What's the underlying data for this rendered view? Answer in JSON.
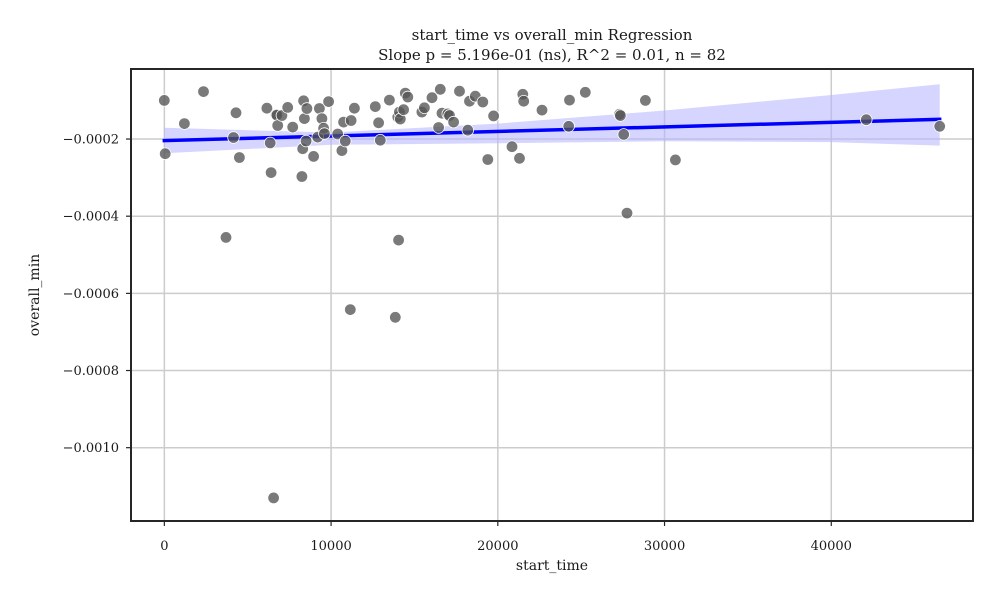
{
  "chart_data": {
    "type": "scatter",
    "title_line1": "start_time vs overall_min Regression",
    "title_line2": "Slope p = 5.196e-01 (ns), R^2 = 0.01, n = 82",
    "xlabel": "start_time",
    "ylabel": "overall_min",
    "xlim": [
      -2000,
      48500
    ],
    "ylim": [
      -0.00119,
      -1.85e-05
    ],
    "x_ticks": [
      0,
      10000,
      20000,
      30000,
      40000
    ],
    "x_tick_labels": [
      "0",
      "10000",
      "20000",
      "30000",
      "40000"
    ],
    "y_ticks": [
      -0.0002,
      -0.0004,
      -0.0006,
      -0.0008,
      -0.001
    ],
    "y_tick_labels": [
      "−0.0002",
      "−0.0004",
      "−0.0006",
      "−0.0008",
      "−0.0010"
    ],
    "grid": true,
    "point_color": "#555555",
    "line_color": "#0000ff",
    "band_color": "#b3b3ff",
    "regression_line": {
      "x": [
        0,
        46500
      ],
      "y": [
        -0.000204,
        -0.000149
      ]
    },
    "confidence_band": {
      "x": [
        0,
        10000,
        20000,
        30000,
        40000,
        46500
      ],
      "upper": [
        -0.000171,
        -0.000183,
        -0.00016,
        -0.000126,
        -8.6e-05,
        -5.8e-05
      ],
      "lower": [
        -0.000237,
        -0.000215,
        -0.000211,
        -0.000206,
        -0.000208,
        -0.000217
      ]
    },
    "points": {
      "x": [
        0,
        50,
        1200,
        2350,
        3700,
        4150,
        4300,
        4500,
        6150,
        6350,
        6400,
        6700,
        6750,
        6800,
        7050,
        7400,
        7700,
        8250,
        8300,
        8350,
        8400,
        8500,
        8550,
        8950,
        9200,
        9300,
        9450,
        9550,
        9600,
        9850,
        10400,
        10650,
        10750,
        10850,
        11150,
        11200,
        11400,
        12650,
        12850,
        12950,
        13500,
        13850,
        14000,
        14050,
        14100,
        14150,
        14350,
        14450,
        14600,
        15450,
        15600,
        16050,
        16450,
        16550,
        16650,
        17000,
        17100,
        17350,
        17700,
        18200,
        18300,
        18650,
        19100,
        19400,
        19750,
        20850,
        21300,
        21500,
        21550,
        22650,
        24250,
        24300,
        25250,
        27300,
        27350,
        27550,
        27750,
        28850,
        30650,
        42100,
        46500,
        6550
      ],
      "y": [
        -0.0001,
        -0.000238,
        -0.00016,
        -7.7e-05,
        -0.000455,
        -0.000196,
        -0.000132,
        -0.000248,
        -0.00012,
        -0.00021,
        -0.000287,
        -0.000137,
        -0.000138,
        -0.000165,
        -0.000139,
        -0.000118,
        -0.000169,
        -0.000297,
        -0.000225,
        -0.000101,
        -0.000147,
        -0.000205,
        -0.000121,
        -0.000245,
        -0.000195,
        -0.000121,
        -0.000147,
        -0.000172,
        -0.000186,
        -0.000103,
        -0.000187,
        -0.00023,
        -0.000156,
        -0.000205,
        -0.000642,
        -0.000152,
        -0.00012,
        -0.000116,
        -0.000158,
        -0.000203,
        -9.9e-05,
        -0.000662,
        -0.000143,
        -0.000462,
        -0.00013,
        -0.000148,
        -0.000124,
        -8.1e-05,
        -9.1e-05,
        -0.00013,
        -0.000119,
        -9.3e-05,
        -0.00017,
        -7.1e-05,
        -0.000133,
        -0.000135,
        -0.000139,
        -0.000156,
        -7.6e-05,
        -0.000177,
        -0.000102,
        -8.9e-05,
        -0.000104,
        -0.000253,
        -0.00014,
        -0.00022,
        -0.00025,
        -8.4e-05,
        -0.000102,
        -0.000125,
        -0.000167,
        -9.9e-05,
        -7.9e-05,
        -0.000136,
        -0.000139,
        -0.000188,
        -0.000392,
        -0.0001,
        -0.000254,
        -0.00015,
        -0.000167,
        -0.00113
      ]
    }
  }
}
